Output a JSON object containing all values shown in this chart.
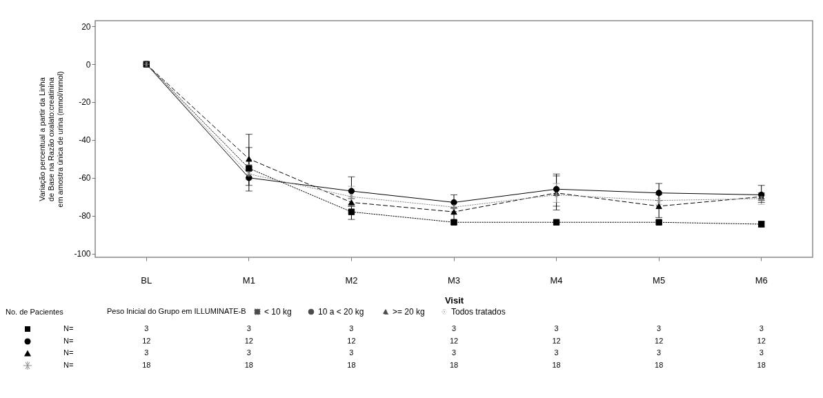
{
  "chart_data": {
    "type": "line",
    "categories": [
      "BL",
      "M1",
      "M2",
      "M3",
      "M4",
      "M5",
      "M6"
    ],
    "xlabel": "Visit",
    "ylabel": "Variação percentual a partir da Linha\nde Base na Razão oxalato:creatinina\nem amostra única de urina (mmol/mmol)",
    "legend_title": "Peso Inicial do Grupo em ILLUMINATE-B",
    "legend": "bottom",
    "grid": false,
    "ylim": [
      -102,
      23
    ],
    "yticks": [
      -100,
      -80,
      -60,
      -40,
      -20,
      0,
      20
    ],
    "series": [
      {
        "name": "< 10 kg",
        "color": "#000000",
        "marker": "square",
        "line_style": "dotted",
        "values": [
          0,
          -55,
          -78,
          -83.5,
          -83.5,
          -83.5,
          -84.5
        ],
        "errors": [
          null,
          [
            -67,
            -44
          ],
          [
            -82,
            -74
          ],
          [
            -84.5,
            -82.5
          ],
          null,
          null,
          [
            -86,
            -83
          ]
        ]
      },
      {
        "name": "10  a < 20 kg",
        "color": "#000000",
        "marker": "circle",
        "line_style": "solid",
        "values": [
          0,
          -60,
          -67,
          -73,
          -66,
          -68,
          -69
        ],
        "errors": [
          null,
          [
            -64,
            -56
          ],
          [
            -75,
            -59.5
          ],
          [
            -76,
            -69
          ],
          [
            -77,
            -58
          ],
          [
            -72,
            -63
          ],
          [
            -73,
            -64
          ]
        ]
      },
      {
        "name": ">= 20 kg",
        "color": "#000000",
        "marker": "triangle",
        "line_style": "dashed",
        "values": [
          0,
          -50,
          -73,
          -78,
          -68,
          -75,
          -70
        ],
        "errors": [
          null,
          [
            -60,
            -37
          ],
          [
            -75,
            -71
          ],
          [
            -83,
            -76
          ],
          [
            -75,
            -59
          ],
          [
            -81,
            -69
          ],
          [
            -72,
            -68
          ]
        ]
      },
      {
        "name": "Todos tratados",
        "color": "#8c8c8c",
        "marker": "cross",
        "line_style": "dotted",
        "values": [
          0,
          -58,
          -70,
          -75.5,
          -69,
          -72,
          -71
        ],
        "errors": [
          null,
          [
            -61,
            -53
          ],
          [
            -75,
            -64.5
          ],
          [
            -78,
            -73
          ],
          [
            -73,
            -63
          ],
          [
            -74,
            -69
          ],
          [
            -74,
            -68
          ]
        ]
      }
    ],
    "annotations": [
      "No. de Pacientes",
      "N=",
      "3",
      "3",
      "3",
      "3",
      "3",
      "3",
      "3",
      "N=",
      "12",
      "12",
      "12",
      "12",
      "12",
      "12",
      "12",
      "N=",
      "3",
      "3",
      "3",
      "3",
      "3",
      "3",
      "3",
      "N=",
      "18",
      "18",
      "18",
      "18",
      "18",
      "18",
      "18"
    ]
  }
}
